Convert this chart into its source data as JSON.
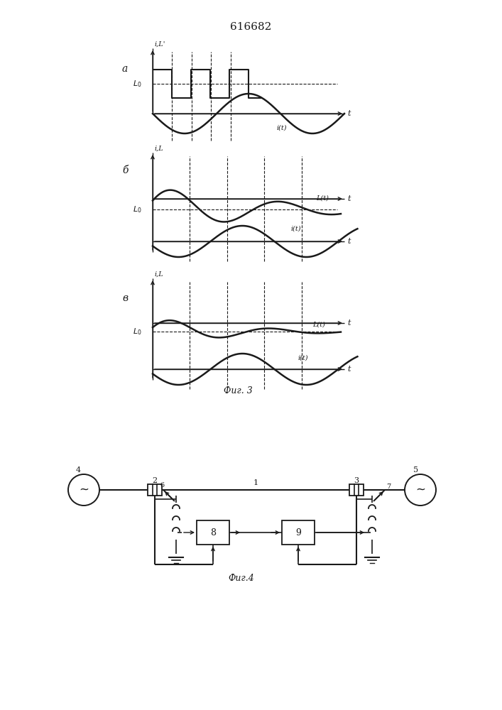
{
  "title": "616682",
  "bg_color": "#ffffff",
  "line_color": "#1a1a1a",
  "fig3_caption": "Фиг. 3",
  "fig4_caption": "Фиг.4",
  "panel_a_label": "а",
  "panel_b_label": "б",
  "panel_c_label": "в",
  "label_iL_prime": "i,L'",
  "label_iL": "i,L",
  "label_t": "t",
  "label_it": "i(t)",
  "label_Lt": "L(t)",
  "label_L0": "L₀"
}
